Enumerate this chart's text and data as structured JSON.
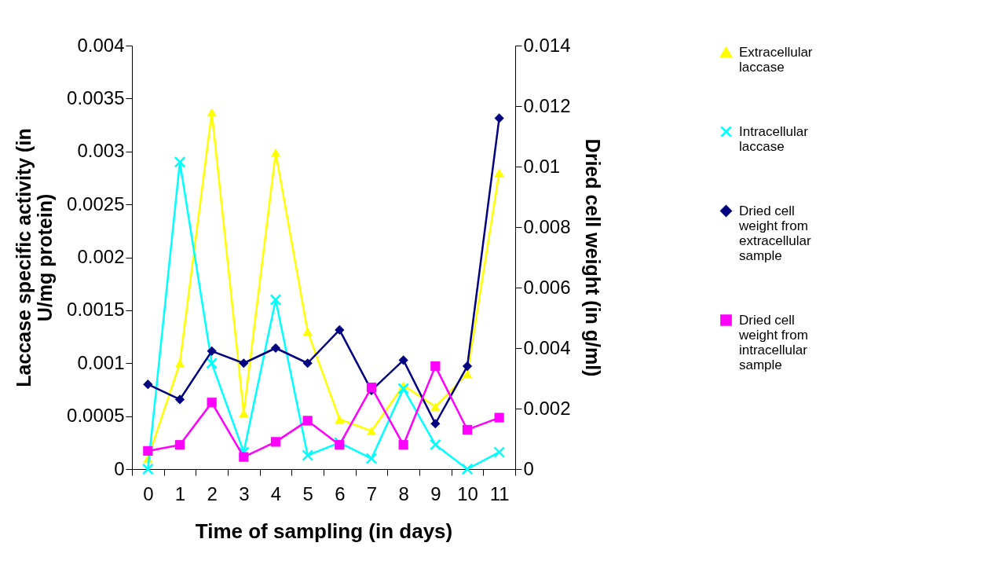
{
  "chart_data": {
    "type": "line",
    "xlabel": "Time of sampling (in days)",
    "ylabel": "Laccase specific activity (in U/mg protein)",
    "y2label": "Dried cell weight (in g/ml)",
    "categories": [
      "0",
      "1",
      "2",
      "3",
      "4",
      "5",
      "6",
      "7",
      "8",
      "9",
      "10",
      "11"
    ],
    "series": [
      {
        "name": "Extracellular laccase",
        "color": "#ffff00",
        "marker": "triangle",
        "values": [
          0.0001,
          0.001,
          0.00337,
          0.00053,
          0.00299,
          0.0013,
          0.00047,
          0.00036,
          0.00079,
          0.00059,
          0.0009,
          0.0028
        ]
      },
      {
        "name": "Intracellular laccase",
        "color": "#00ffff",
        "marker": "cross",
        "values": [
          0,
          0.0029,
          0.001,
          0.00016,
          0.0016,
          0.00013,
          0.00025,
          0.0001,
          0.00076,
          0.00023,
          0,
          0.00016
        ]
      },
      {
        "name": "Dried cell weight from extracellular sample",
        "color": "#000080",
        "marker": "diamond",
        "axis": "y2",
        "values": [
          0.0028,
          0.0023,
          0.0039,
          0.0035,
          0.004,
          0.0035,
          0.0046,
          0.0026,
          0.0036,
          0.0015,
          0.0034,
          0.0116
        ]
      },
      {
        "name": "Dried cell weight from intracellular sample",
        "color": "#ff00ff",
        "marker": "square",
        "axis": "y2",
        "values": [
          0.0006,
          0.0008,
          0.0022,
          0.0004,
          0.0009,
          0.0016,
          0.0008,
          0.0027,
          0.0008,
          0.0034,
          0.0013,
          0.0017
        ]
      }
    ],
    "ylim": [
      0,
      0.004
    ],
    "yticks": [
      0,
      0.0005,
      0.001,
      0.0015,
      0.002,
      0.0025,
      0.003,
      0.0035,
      0.004
    ],
    "y2lim": [
      0,
      0.014
    ],
    "y2ticks": [
      0,
      0.002,
      0.004,
      0.006,
      0.008,
      0.01,
      0.012,
      0.014
    ],
    "grid": false,
    "legend": "right"
  }
}
